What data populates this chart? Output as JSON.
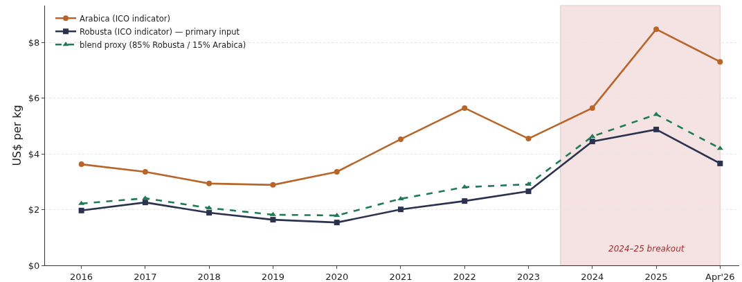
{
  "chart_data": {
    "type": "line",
    "ylabel": "US$ per kg",
    "categories": [
      "2016",
      "2017",
      "2018",
      "2019",
      "2020",
      "2021",
      "2022",
      "2023",
      "2024",
      "2025",
      "Apr'26"
    ],
    "series": [
      {
        "name": "Arabica (ICO indicator)",
        "color": "#b8652a",
        "marker": "circle",
        "line_style": "solid",
        "values": [
          3.63,
          3.36,
          2.94,
          2.89,
          3.36,
          4.53,
          5.65,
          4.55,
          5.65,
          8.48,
          7.31
        ]
      },
      {
        "name": "Robusta (ICO indicator) — primary input",
        "color": "#2b3250",
        "marker": "square",
        "line_style": "solid",
        "values": [
          1.97,
          2.26,
          1.89,
          1.64,
          1.54,
          2.01,
          2.31,
          2.66,
          4.45,
          4.88,
          3.66
        ]
      },
      {
        "name": "blend proxy (85% Robusta / 15% Arabica)",
        "color": "#1f7a56",
        "marker": "triangle",
        "line_style": "dashed",
        "values": [
          2.22,
          2.41,
          2.06,
          1.82,
          1.79,
          2.39,
          2.81,
          2.91,
          4.63,
          5.42,
          4.2
        ]
      }
    ],
    "ylim": [
      0,
      9.33
    ],
    "yticks": [
      {
        "value": 0,
        "label": "$0"
      },
      {
        "value": 2,
        "label": "$2"
      },
      {
        "value": 4,
        "label": "$4"
      },
      {
        "value": 6,
        "label": "$6"
      },
      {
        "value": 8,
        "label": "$8"
      }
    ],
    "bands": [
      {
        "axis": "x",
        "from": "2024",
        "to": "Apr'26",
        "color": "#f5e3e3",
        "label": "2024–25 breakout"
      }
    ],
    "grid": "y",
    "legend": "top left"
  }
}
